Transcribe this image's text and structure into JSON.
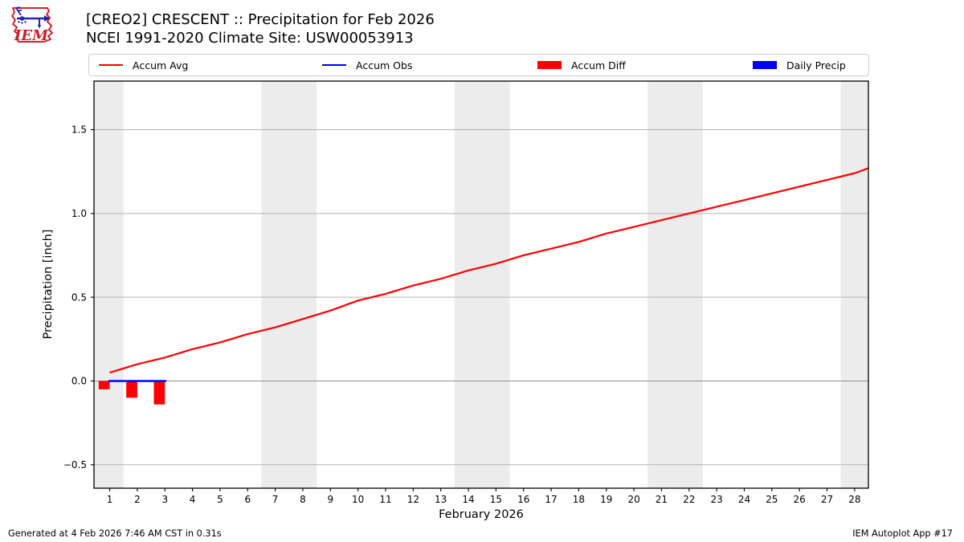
{
  "header": {
    "title_line1": "[CREO2] CRESCENT :: Precipitation for Feb 2026",
    "title_line2": "NCEI 1991-2020 Climate Site: USW00053913",
    "logo_text": "IEM"
  },
  "legend": {
    "items": [
      {
        "label": "Accum Avg",
        "swatch": "line",
        "color": "#ff0000"
      },
      {
        "label": "Accum Obs",
        "swatch": "line",
        "color": "#0000ff"
      },
      {
        "label": "Accum Diff",
        "swatch": "rect",
        "color": "#ff0000"
      },
      {
        "label": "Daily Precip",
        "swatch": "rect",
        "color": "#0000ff"
      }
    ]
  },
  "footer": {
    "generated": "Generated at 4 Feb 2026 7:46 AM CST in 0.31s",
    "app": "IEM Autoplot App #17"
  },
  "chart_data": {
    "type": "line",
    "title": "[CREO2] CRESCENT :: Precipitation for Feb 2026",
    "subtitle": "NCEI 1991-2020 Climate Site: USW00053913",
    "xlabel": "February 2026",
    "ylabel": "Precipitation [inch]",
    "xlim": [
      0.43,
      28.5
    ],
    "ylim": [
      -0.64,
      1.79
    ],
    "grid": "horizontal",
    "grid_color": "#b4b4b4",
    "zero_line_color": "#8f8f8f",
    "band_color": "#ececec",
    "weekend_bands": [
      [
        0.43,
        1.5
      ],
      [
        6.5,
        8.5
      ],
      [
        13.5,
        15.5
      ],
      [
        20.5,
        22.5
      ],
      [
        27.5,
        28.5
      ]
    ],
    "xticks": [
      1,
      2,
      3,
      4,
      5,
      6,
      7,
      8,
      9,
      10,
      11,
      12,
      13,
      14,
      15,
      16,
      17,
      18,
      19,
      20,
      21,
      22,
      23,
      24,
      25,
      26,
      27,
      28
    ],
    "yticks": [
      {
        "value": 1.5,
        "label": "1.5"
      },
      {
        "value": 1.0,
        "label": "1.0"
      },
      {
        "value": 0.5,
        "label": "0.5"
      },
      {
        "value": 0.0,
        "label": "0.0"
      },
      {
        "value": -0.5,
        "label": "−0.5"
      }
    ],
    "legend_position": "top",
    "series": [
      {
        "name": "Accum Avg",
        "type": "line",
        "color": "#ff0000",
        "stroke_width": 2.2,
        "x": [
          1,
          2,
          3,
          4,
          5,
          6,
          7,
          8,
          9,
          10,
          11,
          12,
          13,
          14,
          15,
          16,
          17,
          18,
          19,
          20,
          21,
          22,
          23,
          24,
          25,
          26,
          27,
          28,
          28.5
        ],
        "values": [
          0.05,
          0.1,
          0.14,
          0.19,
          0.23,
          0.28,
          0.32,
          0.37,
          0.42,
          0.48,
          0.52,
          0.57,
          0.61,
          0.66,
          0.7,
          0.75,
          0.79,
          0.83,
          0.88,
          0.92,
          0.96,
          1.0,
          1.04,
          1.08,
          1.12,
          1.16,
          1.2,
          1.24,
          1.27
        ]
      },
      {
        "name": "Accum Obs",
        "type": "line",
        "color": "#0000ff",
        "stroke_width": 2.5,
        "x": [
          0.95,
          2,
          3.05
        ],
        "values": [
          0.0,
          0.0,
          0.0
        ]
      },
      {
        "name": "Accum Diff",
        "type": "bar",
        "color": "#ff0000",
        "bar_offset": -0.2,
        "bar_width": 0.4,
        "x": [
          1,
          2,
          3
        ],
        "values": [
          -0.05,
          -0.1,
          -0.14
        ]
      },
      {
        "name": "Daily Precip",
        "type": "bar",
        "color": "#0000ff",
        "bar_offset": 0.2,
        "bar_width": 0.4,
        "x": [
          1,
          2,
          3
        ],
        "values": [
          0.0,
          0.0,
          0.0
        ]
      }
    ]
  }
}
